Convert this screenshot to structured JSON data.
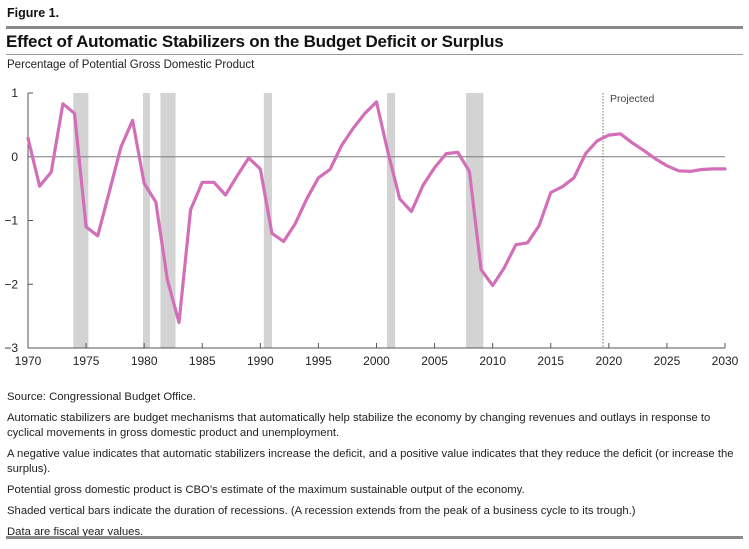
{
  "figure_label": "Figure 1.",
  "title": "Effect of Automatic Stabilizers on the Budget Deficit or Surplus",
  "subtitle": "Percentage of Potential Gross Domestic Product",
  "notes": [
    "Source: Congressional Budget Office.",
    "Automatic stabilizers are budget mechanisms that automatically help stabilize the economy by changing revenues and outlays in response to cyclical movements in gross domestic product and unemployment.",
    "A negative value indicates that automatic stabilizers increase the deficit, and a positive value indicates that they reduce the deficit (or increase the surplus).",
    "Potential gross domestic product is CBO’s estimate of the maximum sustainable output of the economy.",
    "Shaded vertical bars indicate the duration of recessions. (A recession extends from the peak of a business cycle to its trough.)",
    "Data are fiscal year values."
  ],
  "colors": {
    "line": "#d36fb8",
    "recession": "#d3d3d3",
    "zero_line": "#7a7a7a",
    "axis": "#555555",
    "projection_divider": "#777777"
  },
  "chart_data": {
    "type": "line",
    "title": "Effect of Automatic Stabilizers on the Budget Deficit or Surplus",
    "subtitle": "Percentage of Potential Gross Domestic Product",
    "xlabel": "",
    "ylabel": "Percentage of Potential Gross Domestic Product",
    "xlim": [
      1970,
      2030
    ],
    "ylim": [
      -3,
      1
    ],
    "x_ticks": [
      1970,
      1975,
      1980,
      1985,
      1990,
      1995,
      2000,
      2005,
      2010,
      2015,
      2020,
      2025,
      2030
    ],
    "y_ticks": [
      1,
      0,
      -1,
      -2,
      -3
    ],
    "y_tick_labels": [
      "1",
      "0",
      "−1",
      "−2",
      "−3"
    ],
    "grid": false,
    "zero_line": true,
    "projection_start": 2019.5,
    "projection_label": "Projected",
    "recessions": [
      [
        1973.9,
        1975.2
      ],
      [
        1979.9,
        1980.5
      ],
      [
        1981.4,
        1982.7
      ],
      [
        1990.3,
        1991.0
      ],
      [
        2000.9,
        2001.6
      ],
      [
        2007.7,
        2009.2
      ]
    ],
    "series": [
      {
        "name": "Automatic stabilizers",
        "x": [
          1970,
          1971,
          1972,
          1973,
          1974,
          1975,
          1976,
          1977,
          1978,
          1979,
          1980,
          1981,
          1982,
          1983,
          1984,
          1985,
          1986,
          1987,
          1988,
          1989,
          1990,
          1991,
          1992,
          1993,
          1994,
          1995,
          1996,
          1997,
          1998,
          1999,
          2000,
          2001,
          2002,
          2003,
          2004,
          2005,
          2006,
          2007,
          2008,
          2009,
          2010,
          2011,
          2012,
          2013,
          2014,
          2015,
          2016,
          2017,
          2018,
          2019,
          2020,
          2021,
          2022,
          2023,
          2024,
          2025,
          2026,
          2027,
          2028,
          2029,
          2030
        ],
        "values": [
          0.29,
          -0.46,
          -0.24,
          0.83,
          0.68,
          -1.1,
          -1.24,
          -0.55,
          0.15,
          0.57,
          -0.42,
          -0.71,
          -1.93,
          -2.6,
          -0.83,
          -0.4,
          -0.4,
          -0.6,
          -0.3,
          -0.02,
          -0.19,
          -1.2,
          -1.33,
          -1.05,
          -0.66,
          -0.33,
          -0.2,
          0.18,
          0.45,
          0.68,
          0.86,
          0.06,
          -0.66,
          -0.86,
          -0.45,
          -0.17,
          0.05,
          0.07,
          -0.23,
          -1.77,
          -2.02,
          -1.74,
          -1.38,
          -1.35,
          -1.08,
          -0.56,
          -0.47,
          -0.33,
          0.05,
          0.25,
          0.34,
          0.36,
          0.22,
          0.1,
          -0.03,
          -0.14,
          -0.22,
          -0.23,
          -0.2,
          -0.19,
          -0.19
        ]
      }
    ]
  }
}
